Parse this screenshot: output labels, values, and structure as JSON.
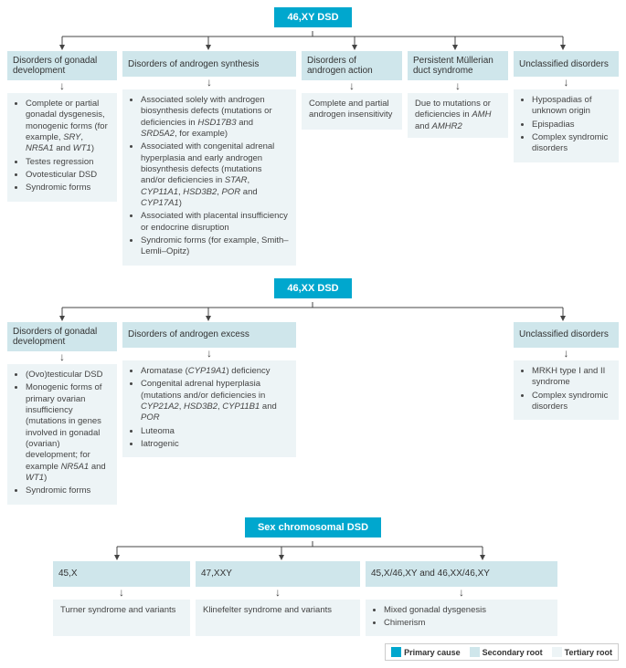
{
  "colors": {
    "primary": "#00a7ce",
    "secondary": "#cfe6eb",
    "tertiary": "#edf4f6",
    "arrow": "#444444"
  },
  "legend": {
    "primary": "Primary cause",
    "secondary": "Secondary root",
    "tertiary": "Tertiary root"
  },
  "s1": {
    "root": "46,XY DSD",
    "c1": {
      "h": "Disorders of gonadal development",
      "items": [
        "Complete or partial gonadal dysgenesis, monogenic forms (for example, <em>SRY</em>, <em>NR5A1</em> and <em>WT1</em>)",
        "Testes regression",
        "Ovotesticular DSD",
        "Syndromic forms"
      ]
    },
    "c2": {
      "h": "Disorders of androgen synthesis",
      "items": [
        "Associated solely with androgen biosynthesis defects (mutations or deficiencies in <em>HSD17B3</em> and <em>SRD5A2</em>, for example)",
        "Associated with congenital adrenal hyperplasia and early androgen biosynthesis defects (mutations and/or deficiencies in <em>STAR</em>, <em>CYP11A1</em>, <em>HSD3B2</em>, <em>POR</em> and <em>CYP17A1</em>)",
        "Associated with placental insufficiency or endocrine disruption",
        "Syndromic forms (for example, Smith–Lemli–Opitz)"
      ]
    },
    "c3": {
      "h": "Disorders of androgen action",
      "text": "Complete and partial androgen insensitivity"
    },
    "c4": {
      "h": "Persistent Müllerian duct syndrome",
      "text": "Due to mutations or deficiencies in <em>AMH</em> and <em>AMHR2</em>"
    },
    "c5": {
      "h": "Unclassified disorders",
      "items": [
        "Hypospadias of unknown origin",
        "Epispadias",
        "Complex syndromic disorders"
      ]
    }
  },
  "s2": {
    "root": "46,XX DSD",
    "c1": {
      "h": "Disorders of gonadal development",
      "items": [
        "(Ovo)testicular DSD",
        "Monogenic forms of primary ovarian insufficiency (mutations in genes involved in gonadal (ovarian) development; for example <em>NR5A1</em> and <em>WT1</em>)",
        "Syndromic forms"
      ]
    },
    "c2": {
      "h": "Disorders of androgen excess",
      "items": [
        "Aromatase (<em>CYP19A1</em>) deficiency",
        "Congenital adrenal hyperplasia (mutations and/or deficiencies in <em>CYP21A2</em>, <em>HSD3B2</em>, <em>CYP11B1</em> and <em>POR</em>",
        "Luteoma",
        "Iatrogenic"
      ]
    },
    "c3": {
      "h": "Unclassified disorders",
      "items": [
        "MRKH type I and II syndrome",
        "Complex syndromic disorders"
      ]
    }
  },
  "s3": {
    "root": "Sex chromosomal DSD",
    "c1": {
      "h": "45,X",
      "t": "Turner syndrome and variants"
    },
    "c2": {
      "h": "47,XXY",
      "t": "Klinefelter syndrome and variants"
    },
    "c3": {
      "h": "45,X/46,XY and 46,XX/46,XY",
      "items": [
        "Mixed gonadal dysgenesis",
        "Chimerism"
      ]
    }
  }
}
